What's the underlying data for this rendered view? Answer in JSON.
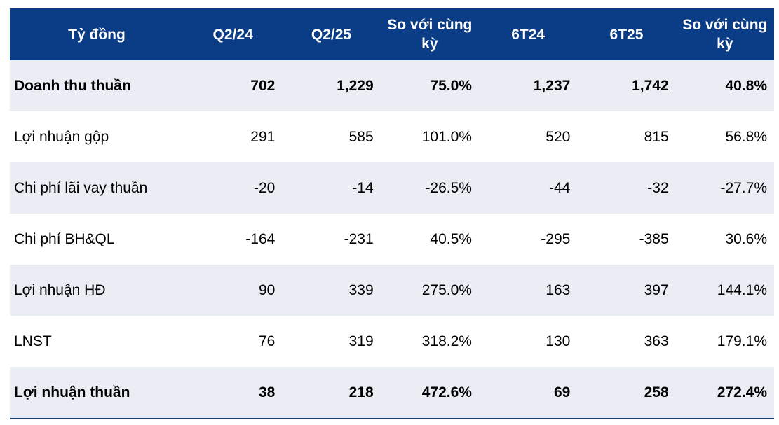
{
  "headers": [
    "Tỷ đồng",
    "Q2/24",
    "Q2/25",
    "So với cùng kỳ",
    "6T24",
    "6T25",
    "So với cùng kỳ"
  ],
  "rows": [
    {
      "label": "Doanh thu thuần",
      "values": [
        "702",
        "1,229",
        "75.0%",
        "1,237",
        "1,742",
        "40.8%"
      ]
    },
    {
      "label": "Lợi nhuận gộp",
      "values": [
        "291",
        "585",
        "101.0%",
        "520",
        "815",
        "56.8%"
      ]
    },
    {
      "label": "Chi phí lãi vay thuần",
      "values": [
        "-20",
        "-14",
        "-26.5%",
        "-44",
        "-32",
        "-27.7%"
      ]
    },
    {
      "label": "Chi phí BH&QL",
      "values": [
        "-164",
        "-231",
        "40.5%",
        "-295",
        "-385",
        "30.6%"
      ]
    },
    {
      "label": "Lợi nhuận HĐ",
      "values": [
        "90",
        "339",
        "275.0%",
        "163",
        "397",
        "144.1%"
      ]
    },
    {
      "label": "LNST",
      "values": [
        "76",
        "319",
        "318.2%",
        "130",
        "363",
        "179.1%"
      ]
    },
    {
      "label": "Lợi nhuận thuần",
      "values": [
        "38",
        "218",
        "472.6%",
        "69",
        "258",
        "272.4%"
      ]
    }
  ],
  "colors": {
    "header": "#0a3d86",
    "stripe": "#ebedf4"
  }
}
